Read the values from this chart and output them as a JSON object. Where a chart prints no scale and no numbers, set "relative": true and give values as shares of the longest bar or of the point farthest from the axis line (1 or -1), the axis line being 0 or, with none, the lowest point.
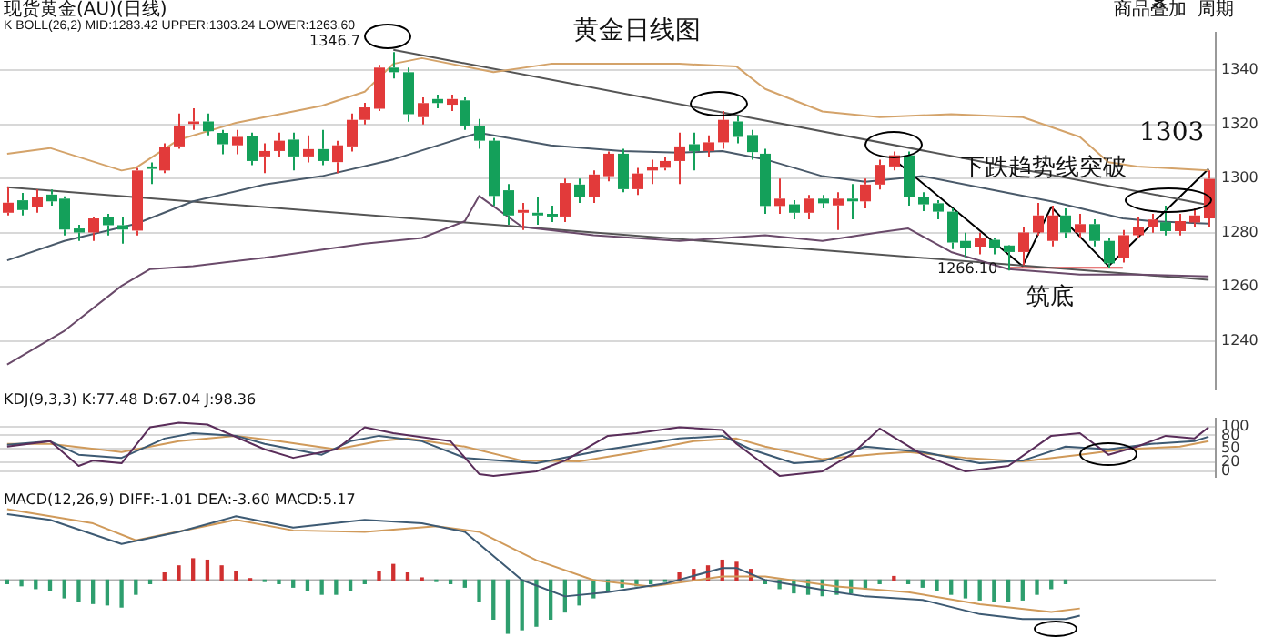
{
  "chart_data": [
    {
      "type": "candlestick",
      "title": "黄金日线图",
      "annotations": [
        "现货黄金(AU)(日线)",
        "K  BOLL(26,2) MID:1283.42 UPPER:1303.24 LOWER:1263.60",
        "1346.7",
        "1266.10",
        "1303",
        "下跌趋势线突破",
        "筑底",
        "商品叠加",
        "周期"
      ],
      "categories": [
        null,
        null,
        null,
        null,
        null,
        null,
        null,
        null,
        null,
        null,
        null,
        null,
        null,
        null,
        null,
        null,
        null,
        null,
        null,
        null,
        null,
        null,
        null,
        null,
        null,
        null,
        null,
        null,
        null,
        null,
        null,
        null,
        null,
        null,
        null,
        null,
        null,
        null,
        null,
        null,
        null,
        null,
        null,
        null,
        null,
        null,
        null,
        null,
        null,
        null,
        null,
        null,
        null,
        null,
        null,
        null,
        null,
        null,
        null,
        null,
        null,
        null,
        null,
        null,
        null,
        null,
        null,
        null,
        null,
        null,
        null,
        null,
        null,
        null,
        null,
        null,
        null,
        null,
        null,
        null,
        null,
        null,
        null,
        null,
        null
      ],
      "ohlc": [
        [
          1287.4,
          1296.8,
          1286.4,
          1291.1
        ],
        [
          1292.0,
          1294.7,
          1286.4,
          1288.4
        ],
        [
          1289.5,
          1296.0,
          1287.4,
          1293.2
        ],
        [
          1294.1,
          1296.0,
          1290.0,
          1291.6
        ],
        [
          1292.6,
          1293.5,
          1279.0,
          1281.2
        ],
        [
          1281.6,
          1283.0,
          1277.0,
          1280.1
        ],
        [
          1280.1,
          1286.0,
          1277.0,
          1285.3
        ],
        [
          1285.7,
          1287.0,
          1279.0,
          1282.8
        ],
        [
          1282.8,
          1286.0,
          1276.0,
          1281.2
        ],
        [
          1280.8,
          1304.0,
          1279.0,
          1303.0
        ],
        [
          1304.5,
          1306.0,
          1298.0,
          1303.6
        ],
        [
          1303.0,
          1313.0,
          1302.0,
          1311.7
        ],
        [
          1311.9,
          1324.0,
          1311.0,
          1319.6
        ],
        [
          1320.2,
          1326.0,
          1318.0,
          1321.1
        ],
        [
          1321.1,
          1324.0,
          1316.0,
          1317.5
        ],
        [
          1316.9,
          1318.0,
          1309.0,
          1312.7
        ],
        [
          1312.3,
          1318.0,
          1309.0,
          1315.4
        ],
        [
          1315.9,
          1317.0,
          1305.0,
          1306.5
        ],
        [
          1308.2,
          1313.0,
          1302.0,
          1310.2
        ],
        [
          1310.2,
          1317.0,
          1308.0,
          1314.0
        ],
        [
          1314.4,
          1317.0,
          1303.0,
          1308.2
        ],
        [
          1308.2,
          1316.0,
          1306.0,
          1310.9
        ],
        [
          1310.9,
          1318.0,
          1305.0,
          1306.5
        ],
        [
          1306.1,
          1314.0,
          1302.0,
          1312.3
        ],
        [
          1311.9,
          1324.0,
          1310.0,
          1321.7
        ],
        [
          1321.7,
          1328.0,
          1320.0,
          1326.3
        ],
        [
          1325.8,
          1342.0,
          1325.0,
          1341.0
        ],
        [
          1341.0,
          1346.7,
          1337.0,
          1339.3
        ],
        [
          1339.3,
          1341.0,
          1321.0,
          1323.8
        ],
        [
          1322.7,
          1330.0,
          1320.0,
          1327.9
        ],
        [
          1329.4,
          1331.0,
          1326.0,
          1327.9
        ],
        [
          1327.3,
          1331.0,
          1325.0,
          1329.4
        ],
        [
          1328.9,
          1330.0,
          1318.0,
          1319.6
        ],
        [
          1319.6,
          1322.0,
          1311.0,
          1314.0
        ],
        [
          1314.0,
          1315.0,
          1290.0,
          1293.6
        ],
        [
          1295.7,
          1298.0,
          1283.0,
          1286.4
        ],
        [
          1287.4,
          1291.0,
          1281.0,
          1288.4
        ],
        [
          1287.4,
          1293.0,
          1283.0,
          1286.4
        ],
        [
          1287.0,
          1290.0,
          1284.0,
          1286.0
        ],
        [
          1286.0,
          1300.0,
          1284.0,
          1298.4
        ],
        [
          1297.8,
          1300.0,
          1291.0,
          1293.2
        ],
        [
          1293.2,
          1303.0,
          1291.0,
          1301.5
        ],
        [
          1300.9,
          1310.0,
          1299.0,
          1309.2
        ],
        [
          1309.2,
          1311.0,
          1295.0,
          1296.1
        ],
        [
          1296.1,
          1304.0,
          1294.0,
          1301.9
        ],
        [
          1303.0,
          1307.0,
          1298.0,
          1304.4
        ],
        [
          1304.0,
          1308.0,
          1303.0,
          1306.5
        ],
        [
          1306.5,
          1317.0,
          1298.0,
          1311.9
        ],
        [
          1312.7,
          1317.0,
          1303.0,
          1310.2
        ],
        [
          1310.2,
          1316.0,
          1308.0,
          1313.4
        ],
        [
          1313.4,
          1325.0,
          1311.0,
          1321.7
        ],
        [
          1321.1,
          1323.0,
          1313.0,
          1315.4
        ],
        [
          1316.1,
          1318.0,
          1307.0,
          1309.8
        ],
        [
          1309.2,
          1311.0,
          1287.0,
          1289.9
        ],
        [
          1289.9,
          1300.0,
          1287.0,
          1292.6
        ],
        [
          1290.5,
          1292.0,
          1285.0,
          1287.4
        ],
        [
          1287.4,
          1294.0,
          1285.0,
          1292.6
        ],
        [
          1292.6,
          1294.0,
          1289.0,
          1290.9
        ],
        [
          1290.1,
          1295.0,
          1281.0,
          1292.6
        ],
        [
          1292.6,
          1298.0,
          1285.0,
          1291.6
        ],
        [
          1291.6,
          1300.0,
          1289.0,
          1297.8
        ],
        [
          1297.8,
          1307.0,
          1296.0,
          1305.1
        ],
        [
          1304.5,
          1310.0,
          1303.0,
          1308.6
        ],
        [
          1308.6,
          1310.0,
          1290.0,
          1293.2
        ],
        [
          1293.2,
          1295.0,
          1288.0,
          1290.5
        ],
        [
          1290.9,
          1292.0,
          1285.0,
          1287.8
        ],
        [
          1287.8,
          1289.0,
          1274.0,
          1276.4
        ],
        [
          1277.0,
          1280.0,
          1271.0,
          1274.5
        ],
        [
          1274.9,
          1280.0,
          1272.0,
          1277.9
        ],
        [
          1277.4,
          1278.0,
          1272.0,
          1274.5
        ],
        [
          1275.3,
          1275.5,
          1266.1,
          1272.9
        ],
        [
          1272.9,
          1282.0,
          1268.0,
          1280.1
        ],
        [
          1280.1,
          1291.0,
          1279.0,
          1286.4
        ],
        [
          1277.0,
          1290.0,
          1275.0,
          1286.4
        ],
        [
          1286.4,
          1289.0,
          1278.0,
          1280.1
        ],
        [
          1280.1,
          1287.0,
          1278.0,
          1283.2
        ],
        [
          1283.2,
          1285.0,
          1275.0,
          1277.0
        ],
        [
          1277.0,
          1278.0,
          1266.8,
          1268.7
        ],
        [
          1270.8,
          1281.0,
          1269.0,
          1279.1
        ],
        [
          1279.1,
          1286.0,
          1278.0,
          1282.2
        ],
        [
          1282.2,
          1287.0,
          1280.0,
          1284.9
        ],
        [
          1283.9,
          1290.0,
          1279.0,
          1280.6
        ],
        [
          1280.6,
          1287.0,
          1279.0,
          1284.3
        ],
        [
          1283.8,
          1289.0,
          1282.0,
          1286.4
        ],
        [
          1285.3,
          1303.0,
          1282.0,
          1299.9
        ]
      ],
      "series": [
        {
          "type": "line",
          "color": "#d4a36a",
          "values": [
            1309.2,
            null,
            null,
            1311.3,
            null,
            null,
            null,
            null,
            1303,
            1304.0,
            null,
            null,
            1314.4,
            null,
            null,
            null,
            1320.6,
            null,
            null,
            null,
            null,
            null,
            1326.9,
            null,
            null,
            1332.1,
            null,
            1342.4,
            null,
            1344.5,
            null,
            null,
            null,
            null,
            1339.3,
            null,
            null,
            null,
            1342.4,
            null,
            null,
            null,
            null,
            null,
            null,
            null,
            null,
            1342.4,
            null,
            null,
            null,
            1341.4,
            null,
            1333.1,
            null,
            null,
            null,
            1324.8,
            null,
            null,
            null,
            1322.7,
            null,
            null,
            null,
            null,
            1323.8,
            null,
            null,
            null,
            null,
            1322.7,
            null,
            null,
            null,
            1315.4,
            null,
            1306.1,
            null,
            1304.5,
            null,
            null,
            null,
            null,
            1303.0
          ]
        },
        {
          "type": "line",
          "color": "#4a5a6a",
          "values": [
            1269.8,
            null,
            null,
            null,
            1277,
            null,
            null,
            null,
            null,
            1283.3,
            null,
            null,
            null,
            1291.6,
            null,
            null,
            null,
            null,
            1297.8,
            null,
            null,
            null,
            1300.9,
            null,
            null,
            null,
            null,
            1307.1,
            null,
            null,
            null,
            null,
            1315.4,
            1316.9,
            null,
            null,
            null,
            null,
            1312.3,
            null,
            null,
            null,
            null,
            1310.2,
            null,
            null,
            null,
            1309.6,
            null,
            null,
            1310.2,
            null,
            null,
            1307.1,
            null,
            null,
            null,
            1300.9,
            null,
            null,
            1298.8,
            null,
            null,
            null,
            1300.9,
            null,
            null,
            null,
            null,
            1295.7,
            null,
            null,
            null,
            1291.6,
            null,
            null,
            null,
            null,
            1285.3,
            null,
            1284.3,
            null,
            null,
            null,
            1283.4
          ]
        },
        {
          "type": "line",
          "color": "#6a4a6a",
          "values": [
            1231.3,
            null,
            null,
            null,
            1243.8,
            null,
            null,
            null,
            1260.4,
            null,
            1266.6,
            null,
            null,
            1267.7,
            null,
            null,
            null,
            null,
            1270.8,
            null,
            null,
            null,
            null,
            null,
            null,
            1276,
            null,
            null,
            null,
            1278.1,
            null,
            null,
            1284.3,
            1293.6,
            null,
            null,
            1282.2,
            null,
            null,
            null,
            null,
            1279.1,
            null,
            null,
            null,
            null,
            null,
            1277,
            null,
            null,
            null,
            null,
            null,
            1279.1,
            null,
            null,
            null,
            1277,
            null,
            null,
            null,
            1280.2,
            null,
            1281.6,
            null,
            null,
            1272.9,
            null,
            null,
            null,
            1266.6,
            null,
            null,
            null,
            null,
            1264.6,
            null,
            null,
            null,
            1264.6,
            null,
            null,
            null,
            null,
            1263.9
          ]
        },
        {
          "type": "line",
          "color": "#555555",
          "values": [
            null,
            null,
            null,
            null,
            null,
            null,
            null,
            null,
            null,
            null,
            null,
            null,
            null,
            null,
            null,
            null,
            null,
            null,
            null,
            null,
            null,
            null,
            null,
            null,
            null,
            null,
            null,
            1347.6,
            null,
            null,
            null,
            null,
            null,
            null,
            null,
            null,
            null,
            null,
            null,
            null,
            null,
            null,
            null,
            null,
            null,
            null,
            null,
            null,
            null,
            null,
            null,
            null,
            null,
            null,
            null,
            null,
            null,
            null,
            null,
            null,
            null,
            null,
            null,
            null,
            null,
            null,
            null,
            null,
            null,
            null,
            null,
            null,
            null,
            null,
            null,
            null,
            null,
            null,
            null,
            null,
            null,
            null,
            null,
            null,
            1290.3
          ]
        },
        {
          "type": "line",
          "color": "#555555",
          "values": [
            1296.8,
            null,
            null,
            null,
            null,
            null,
            null,
            null,
            null,
            null,
            null,
            null,
            null,
            null,
            null,
            null,
            null,
            null,
            null,
            null,
            null,
            null,
            null,
            null,
            null,
            null,
            null,
            null,
            null,
            null,
            null,
            null,
            null,
            null,
            null,
            null,
            null,
            null,
            null,
            null,
            null,
            null,
            null,
            null,
            null,
            null,
            null,
            null,
            null,
            null,
            null,
            null,
            null,
            null,
            null,
            null,
            null,
            null,
            null,
            null,
            null,
            null,
            null,
            null,
            null,
            null,
            null,
            null,
            null,
            null,
            null,
            null,
            null,
            null,
            null,
            null,
            null,
            null,
            null,
            null,
            null,
            null,
            null,
            null,
            1262.6
          ]
        },
        {
          "type": "line",
          "color": "#e05050",
          "values": [
            null,
            null,
            null,
            null,
            null,
            null,
            null,
            null,
            null,
            null,
            null,
            null,
            null,
            null,
            null,
            null,
            null,
            null,
            null,
            null,
            null,
            null,
            null,
            null,
            null,
            null,
            null,
            null,
            null,
            null,
            null,
            null,
            null,
            null,
            null,
            null,
            null,
            null,
            null,
            null,
            null,
            null,
            null,
            null,
            null,
            null,
            null,
            null,
            null,
            null,
            null,
            null,
            null,
            null,
            null,
            null,
            null,
            null,
            null,
            null,
            null,
            null,
            null,
            null,
            null,
            null,
            null,
            null,
            null,
            null,
            1267.1,
            null,
            null,
            null,
            null,
            null,
            null,
            null,
            1267.1,
            null,
            null,
            null,
            null,
            null,
            null
          ]
        },
        {
          "type": "line",
          "color": "#000000",
          "values": [
            null,
            null,
            null,
            null,
            null,
            null,
            null,
            null,
            null,
            null,
            null,
            null,
            null,
            null,
            null,
            null,
            null,
            null,
            null,
            null,
            null,
            null,
            null,
            null,
            null,
            null,
            null,
            null,
            null,
            null,
            null,
            null,
            null,
            null,
            null,
            null,
            null,
            null,
            null,
            null,
            null,
            null,
            null,
            null,
            null,
            null,
            null,
            null,
            null,
            null,
            null,
            null,
            null,
            null,
            null,
            null,
            null,
            null,
            null,
            null,
            null,
            null,
            1307.1,
            null,
            null,
            null,
            null,
            null,
            null,
            null,
            null,
            1267.7,
            null,
            1289.5,
            null,
            null,
            null,
            1267.7,
            null,
            null,
            null,
            null,
            null,
            null,
            1303.6
          ]
        }
      ],
      "ylim": [
        1222,
        1354
      ],
      "yticks": [
        1240,
        1260,
        1280,
        1300,
        1320,
        1340
      ],
      "grid": "y",
      "tick_labels": "y"
    },
    {
      "type": "line",
      "annotations": [
        "KDJ(9,3,3) K:77.48 D:67.04 J:98.36"
      ],
      "categories": [
        null,
        null,
        null,
        null,
        null,
        null,
        null,
        null,
        null,
        null,
        null,
        null,
        null,
        null,
        null,
        null,
        null,
        null,
        null,
        null,
        null,
        null,
        null,
        null,
        null,
        null,
        null,
        null,
        null,
        null,
        null,
        null,
        null,
        null,
        null,
        null,
        null,
        null,
        null,
        null,
        null,
        null,
        null,
        null,
        null,
        null,
        null,
        null,
        null,
        null,
        null,
        null,
        null,
        null,
        null,
        null,
        null,
        null,
        null,
        null,
        null,
        null,
        null,
        null,
        null,
        null,
        null,
        null,
        null,
        null,
        null,
        null,
        null,
        null,
        null,
        null,
        null,
        null,
        null,
        null,
        null,
        null,
        null,
        null,
        null
      ],
      "series": [
        {
          "color": "#5a2d5a",
          "values": [
            55,
            null,
            null,
            67,
            null,
            12,
            24,
            null,
            18,
            null,
            98,
            null,
            108,
            null,
            104,
            null,
            null,
            null,
            49,
            null,
            30,
            null,
            null,
            49,
            null,
            98,
            null,
            85,
            null,
            null,
            null,
            67,
            null,
            -6,
            -10,
            null,
            null,
            0,
            null,
            24,
            null,
            null,
            79,
            null,
            85,
            null,
            null,
            98,
            null,
            null,
            92,
            61,
            null,
            null,
            -10,
            null,
            null,
            0,
            null,
            37,
            null,
            95,
            null,
            null,
            37,
            null,
            null,
            0,
            null,
            null,
            12,
            null,
            null,
            79,
            null,
            85,
            null,
            37,
            null,
            55,
            null,
            79,
            null,
            73,
            98
          ]
        },
        {
          "color": "#3d5a73",
          "values": [
            59,
            null,
            null,
            67,
            null,
            37,
            null,
            null,
            30,
            null,
            null,
            73,
            null,
            85,
            null,
            null,
            79,
            null,
            61,
            null,
            null,
            null,
            37,
            null,
            67,
            null,
            79,
            null,
            null,
            67,
            null,
            null,
            30,
            null,
            null,
            null,
            null,
            18,
            null,
            null,
            37,
            null,
            49,
            null,
            null,
            null,
            null,
            73,
            null,
            null,
            79,
            null,
            49,
            null,
            null,
            18,
            null,
            22,
            null,
            null,
            55,
            null,
            null,
            null,
            43,
            null,
            null,
            null,
            18,
            null,
            null,
            24,
            null,
            null,
            55,
            null,
            null,
            49,
            null,
            null,
            61,
            null,
            null,
            67,
            77
          ]
        },
        {
          "color": "#d09a5a",
          "values": [
            61,
            null,
            null,
            61,
            null,
            null,
            null,
            null,
            43,
            null,
            null,
            null,
            67,
            null,
            null,
            null,
            79,
            null,
            null,
            67,
            null,
            null,
            null,
            49,
            null,
            null,
            67,
            null,
            73,
            null,
            null,
            null,
            55,
            null,
            null,
            null,
            24,
            null,
            null,
            null,
            22,
            null,
            null,
            null,
            43,
            null,
            null,
            null,
            67,
            null,
            null,
            73,
            null,
            55,
            null,
            null,
            null,
            27,
            null,
            null,
            null,
            39,
            null,
            43,
            null,
            null,
            null,
            30,
            null,
            null,
            null,
            22,
            null,
            null,
            null,
            37,
            null,
            null,
            49,
            null,
            null,
            null,
            55,
            null,
            67
          ]
        }
      ],
      "ylim": [
        -13,
        118
      ],
      "yticks": [
        0,
        20,
        50,
        80,
        100
      ],
      "grid": "y",
      "tick_labels": "y"
    },
    {
      "type": "line",
      "relative": true,
      "annotations": [
        "MACD(12,26,9) DIFF:-1.01 DEA:-3.60 MACD:5.17"
      ],
      "categories": [
        null,
        null,
        null,
        null,
        null,
        null,
        null,
        null,
        null,
        null,
        null,
        null,
        null,
        null,
        null,
        null,
        null,
        null,
        null,
        null,
        null,
        null,
        null,
        null,
        null,
        null,
        null,
        null,
        null,
        null,
        null,
        null,
        null,
        null,
        null,
        null,
        null,
        null,
        null,
        null,
        null,
        null,
        null,
        null,
        null,
        null,
        null,
        null,
        null,
        null,
        null,
        null,
        null,
        null,
        null,
        null,
        null,
        null,
        null,
        null,
        null,
        null,
        null,
        null,
        null,
        null,
        null,
        null,
        null,
        null,
        null,
        null,
        null,
        null,
        null,
        null,
        null,
        null,
        null,
        null,
        null,
        null,
        null,
        null,
        null
      ],
      "series": [
        {
          "type": "bar",
          "values": [
            -0.05,
            -0.08,
            -0.12,
            -0.15,
            -0.25,
            -0.3,
            -0.33,
            -0.35,
            -0.38,
            -0.2,
            -0.05,
            0.1,
            0.2,
            0.3,
            0.28,
            0.2,
            0.12,
            0.02,
            -0.02,
            -0.05,
            -0.1,
            -0.15,
            -0.2,
            -0.2,
            -0.15,
            -0.05,
            0.12,
            0.22,
            0.1,
            0.03,
            -0.02,
            -0.05,
            -0.1,
            -0.3,
            -0.55,
            -0.75,
            -0.7,
            -0.65,
            -0.55,
            -0.45,
            -0.35,
            -0.25,
            -0.15,
            -0.1,
            -0.08,
            -0.05,
            -0.02,
            0.1,
            0.15,
            0.2,
            0.28,
            0.25,
            0.15,
            -0.05,
            -0.12,
            -0.18,
            -0.2,
            -0.22,
            -0.2,
            -0.18,
            -0.12,
            -0.05,
            0.05,
            -0.05,
            -0.1,
            -0.15,
            -0.2,
            -0.25,
            -0.28,
            -0.3,
            -0.3,
            -0.28,
            -0.2,
            -0.12,
            -0.05,
            null,
            null,
            null,
            null,
            null,
            null,
            null,
            null,
            null,
            null
          ],
          "colors": [
            "#2e9e6e",
            "#2e9e6e",
            "#2e9e6e",
            "#2e9e6e",
            "#2e9e6e",
            "#2e9e6e",
            "#2e9e6e",
            "#2e9e6e",
            "#2e9e6e",
            "#2e9e6e",
            "#2e9e6e",
            "#d03030",
            "#d03030",
            "#d03030",
            "#d03030",
            "#d03030",
            "#d03030",
            "#d03030",
            "#2e9e6e",
            "#2e9e6e",
            "#2e9e6e",
            "#2e9e6e",
            "#2e9e6e",
            "#2e9e6e",
            "#2e9e6e",
            "#2e9e6e",
            "#d03030",
            "#d03030",
            "#d03030",
            "#d03030",
            "#2e9e6e",
            "#2e9e6e",
            "#2e9e6e",
            "#2e9e6e",
            "#2e9e6e",
            "#2e9e6e",
            "#2e9e6e",
            "#2e9e6e",
            "#2e9e6e",
            "#2e9e6e",
            "#2e9e6e",
            "#2e9e6e",
            "#2e9e6e",
            "#2e9e6e",
            "#2e9e6e",
            "#2e9e6e",
            "#2e9e6e",
            "#d03030",
            "#d03030",
            "#d03030",
            "#d03030",
            "#d03030",
            "#d03030",
            "#2e9e6e",
            "#2e9e6e",
            "#2e9e6e",
            "#2e9e6e",
            "#2e9e6e",
            "#2e9e6e",
            "#2e9e6e",
            "#2e9e6e",
            "#2e9e6e",
            "#d03030",
            "#2e9e6e",
            "#2e9e6e",
            "#2e9e6e",
            "#2e9e6e",
            "#2e9e6e",
            "#2e9e6e",
            "#2e9e6e",
            "#2e9e6e",
            "#2e9e6e",
            "#2e9e6e",
            "#2e9e6e",
            "#2e9e6e",
            null,
            null,
            null,
            null,
            null,
            null,
            null,
            null,
            null,
            null
          ]
        },
        {
          "type": "line",
          "color": "#3d5a73",
          "values": [
            0.93,
            null,
            null,
            0.85,
            null,
            null,
            null,
            null,
            0.51,
            null,
            null,
            null,
            0.68,
            null,
            null,
            null,
            0.9,
            null,
            null,
            null,
            0.74,
            null,
            null,
            null,
            null,
            0.85,
            null,
            null,
            null,
            0.8,
            null,
            null,
            0.68,
            null,
            0.34,
            null,
            0,
            null,
            null,
            -0.23,
            null,
            null,
            -0.17,
            null,
            null,
            null,
            -0.05,
            null,
            null,
            null,
            0.17,
            0.17,
            null,
            0,
            null,
            null,
            null,
            null,
            -0.17,
            null,
            -0.23,
            null,
            null,
            null,
            -0.28,
            null,
            null,
            null,
            -0.48,
            null,
            null,
            -0.55,
            null,
            null,
            -0.55,
            -0.5,
            null,
            null,
            null,
            null,
            null,
            null,
            null,
            null,
            null
          ]
        },
        {
          "type": "line",
          "color": "#d09a5a",
          "values": [
            1,
            null,
            null,
            null,
            null,
            null,
            0.8,
            null,
            null,
            0.56,
            null,
            null,
            null,
            null,
            null,
            null,
            0.85,
            null,
            null,
            null,
            0.7,
            null,
            null,
            null,
            null,
            0.68,
            null,
            null,
            null,
            null,
            0.76,
            null,
            null,
            0.68,
            null,
            null,
            null,
            0.28,
            null,
            null,
            null,
            0,
            null,
            null,
            null,
            -0.09,
            null,
            null,
            null,
            null,
            0.05,
            null,
            null,
            0.05,
            null,
            null,
            null,
            null,
            -0.09,
            null,
            null,
            null,
            null,
            -0.17,
            null,
            null,
            null,
            null,
            -0.34,
            null,
            null,
            null,
            null,
            -0.45,
            null,
            -0.4,
            null,
            null,
            null,
            null,
            null,
            null,
            null,
            null,
            null
          ]
        }
      ],
      "tick_labels": false
    }
  ]
}
